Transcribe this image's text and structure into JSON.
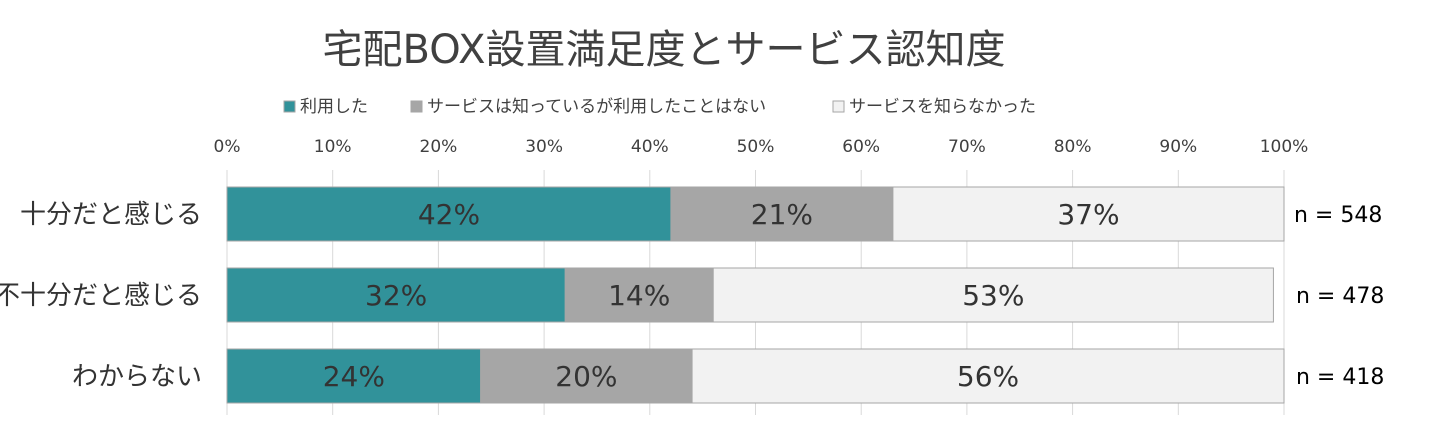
{
  "chart_data": {
    "type": "bar",
    "orientation": "horizontal",
    "stacked": true,
    "title": "宅配BOX設置満足度とサービス認知度",
    "categories": [
      "十分だと感じる",
      "不十分だと感じる",
      "わからない"
    ],
    "series": [
      {
        "name": "利用した",
        "color": "#31929A",
        "values": [
          42,
          32,
          24
        ],
        "labels": [
          "42%",
          "32%",
          "24%"
        ]
      },
      {
        "name": "サービスは知っているが利用したことはない",
        "color": "#A6A6A6",
        "values": [
          21,
          14,
          20
        ],
        "labels": [
          "21%",
          "14%",
          "20%"
        ]
      },
      {
        "name": "サービスを知らなかった",
        "color": "#F2F2F2",
        "values": [
          37,
          53,
          56
        ],
        "labels": [
          "37%",
          "53%",
          "56%"
        ]
      }
    ],
    "n_labels": [
      "n = 548",
      "n = 478",
      "n = 418"
    ],
    "xlim": [
      0,
      100
    ],
    "x_ticks": [
      "0%",
      "10%",
      "20%",
      "30%",
      "40%",
      "50%",
      "60%",
      "70%",
      "80%",
      "90%",
      "100%"
    ],
    "grid": true,
    "legend_position": "top"
  }
}
